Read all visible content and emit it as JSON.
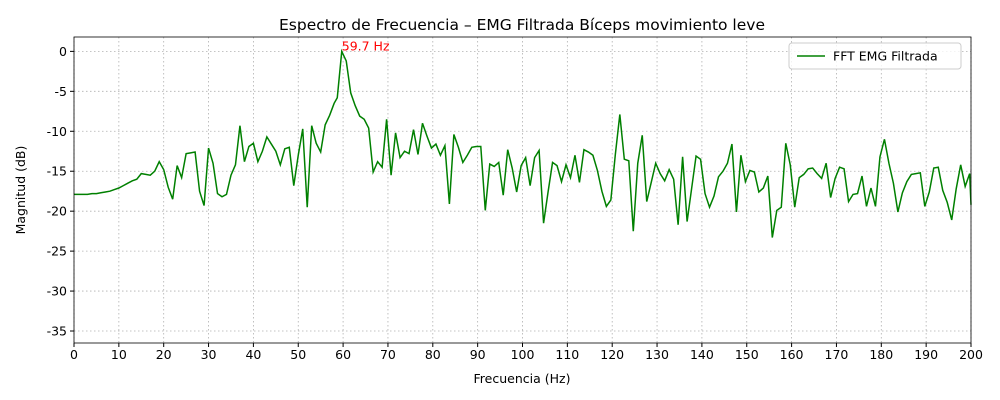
{
  "chart_data": {
    "type": "line",
    "title": "Espectro de Frecuencia – EMG Filtrada Bíceps movimiento leve",
    "xlabel": "Frecuencia (Hz)",
    "ylabel": "Magnitud (dB)",
    "x": [
      0,
      1,
      2,
      3,
      4,
      5,
      6,
      7,
      8,
      9,
      10,
      11,
      12,
      13,
      14,
      15,
      16,
      17,
      18,
      19,
      20,
      21,
      22,
      23,
      24,
      25,
      26,
      27,
      28,
      29,
      30,
      31,
      32,
      33,
      34,
      35,
      36,
      37,
      38,
      39,
      40,
      41,
      42,
      43,
      44,
      45,
      46,
      47,
      48,
      49,
      50,
      51,
      52,
      53,
      54,
      55,
      56,
      57,
      58,
      58.7,
      59.7,
      60.7,
      61.7,
      62.7,
      63.7,
      64.7,
      65.7,
      66.7,
      67.7,
      68.7,
      69.7,
      70.7,
      71.7,
      72.7,
      73.7,
      74.7,
      75.7,
      76.7,
      77.7,
      78.7,
      79.7,
      80.7,
      81.7,
      82.7,
      83.7,
      84.7,
      85.7,
      86.7,
      87.7,
      88.7,
      89.7,
      90.7,
      91.7,
      92.7,
      93.7,
      94.7,
      95.7,
      96.7,
      97.7,
      98.7,
      99.7,
      100.7,
      101.7,
      102.7,
      103.7,
      104.7,
      105.7,
      106.7,
      107.7,
      108.7,
      109.7,
      110.7,
      111.7,
      112.7,
      113.7,
      114.7,
      115.7,
      116.7,
      117.7,
      118.7,
      119.7,
      120.7,
      121.7,
      122.7,
      123.7,
      124.7,
      125.7,
      126.7,
      127.7,
      128.7,
      129.7,
      130.7,
      131.7,
      132.7,
      133.7,
      134.7,
      135.7,
      136.7,
      137.7,
      138.7,
      139.7,
      140.7,
      141.7,
      142.7,
      143.7,
      144.7,
      145.7,
      146.7,
      147.7,
      148.7,
      149.7,
      150.7,
      151.7,
      152.7,
      153.7,
      154.7,
      155.7,
      156.7,
      157.7,
      158.7,
      159.7,
      160.7,
      161.7,
      162.7,
      163.7,
      164.7,
      165.7,
      166.7,
      167.7,
      168.7,
      169.7,
      170.7,
      171.7,
      172.7,
      173.7,
      174.7,
      175.7,
      176.7,
      177.7,
      178.7,
      179.7,
      180.7,
      181.7,
      182.7,
      183.7,
      184.7,
      185.7,
      186.7,
      187.7,
      188.7,
      189.7,
      190.7,
      191.7,
      192.7,
      193.7,
      194.7,
      195.7,
      196.7,
      197.7,
      198.7,
      199.7,
      200
    ],
    "series": [
      {
        "name": "FFT EMG Filtrada",
        "color": "#008000",
        "values": [
          -17.9,
          -17.9,
          -17.9,
          -17.9,
          -17.8,
          -17.8,
          -17.7,
          -17.6,
          -17.5,
          -17.3,
          -17.1,
          -16.8,
          -16.5,
          -16.2,
          -16.0,
          -15.3,
          -15.4,
          -15.5,
          -15.0,
          -13.8,
          -14.8,
          -17.0,
          -18.5,
          -14.3,
          -15.8,
          -12.8,
          -12.7,
          -12.6,
          -17.5,
          -19.3,
          -12.1,
          -14.0,
          -17.8,
          -18.2,
          -17.9,
          -15.5,
          -14.2,
          -9.3,
          -13.8,
          -11.9,
          -11.5,
          -13.8,
          -12.5,
          -10.7,
          -11.6,
          -12.5,
          -14.2,
          -12.2,
          -12.0,
          -16.8,
          -13.0,
          -9.7,
          -19.5,
          -9.3,
          -11.5,
          -12.6,
          -9.2,
          -8.0,
          -6.5,
          -5.8,
          0,
          -1.2,
          -5.2,
          -6.8,
          -8.1,
          -8.5,
          -9.6,
          -15.1,
          -13.8,
          -14.5,
          -8.5,
          -15.5,
          -10.2,
          -13.3,
          -12.5,
          -12.8,
          -9.8,
          -12.9,
          -9.0,
          -10.6,
          -12.1,
          -11.6,
          -13.0,
          -11.8,
          -19.1,
          -10.4,
          -12.0,
          -13.9,
          -13.0,
          -12.0,
          -11.9,
          -11.9,
          -19.9,
          -14.1,
          -14.4,
          -13.9,
          -18.0,
          -12.3,
          -14.6,
          -17.6,
          -14.3,
          -13.3,
          -16.8,
          -13.3,
          -12.4,
          -21.5,
          -17.6,
          -13.9,
          -14.3,
          -16.3,
          -14.2,
          -15.8,
          -13.0,
          -16.4,
          -12.3,
          -12.6,
          -13.0,
          -14.9,
          -17.5,
          -19.4,
          -18.6,
          -12.9,
          -7.9,
          -13.5,
          -13.7,
          -22.5,
          -14.0,
          -10.5,
          -18.8,
          -16.4,
          -14.0,
          -15.3,
          -16.2,
          -14.8,
          -16.0,
          -21.7,
          -13.2,
          -21.3,
          -17.2,
          -13.1,
          -13.5,
          -17.8,
          -19.5,
          -18.1,
          -15.7,
          -15.0,
          -14.0,
          -11.6,
          -20.1,
          -13.0,
          -16.3,
          -14.9,
          -15.1,
          -17.6,
          -17.1,
          -15.6,
          -23.3,
          -19.9,
          -19.5,
          -11.5,
          -14.2,
          -19.5,
          -15.8,
          -15.4,
          -14.7,
          -14.6,
          -15.3,
          -15.9,
          -14.0,
          -18.3,
          -15.9,
          -14.5,
          -14.7,
          -18.8,
          -17.9,
          -17.8,
          -15.6,
          -19.4,
          -17.1,
          -19.4,
          -13.2,
          -11.0,
          -14.0,
          -16.5,
          -20.1,
          -17.7,
          -16.3,
          -15.4,
          -15.3,
          -15.2,
          -19.4,
          -17.6,
          -14.6,
          -14.5,
          -17.4,
          -18.9,
          -21.1,
          -17.2,
          -14.2,
          -16.9,
          -15.3,
          -19.2
        ]
      }
    ],
    "annotations": [
      {
        "text": "59.7 Hz",
        "x": 59.7,
        "y": 0,
        "color": "#ff0000"
      }
    ],
    "xlim": [
      0,
      200
    ],
    "ylim": [
      -36.5,
      1.8
    ],
    "xticks": [
      0,
      10,
      20,
      30,
      40,
      50,
      60,
      70,
      80,
      90,
      100,
      110,
      120,
      130,
      140,
      150,
      160,
      170,
      180,
      190,
      200
    ],
    "yticks": [
      0,
      -5,
      -10,
      -15,
      -20,
      -25,
      -30,
      -35
    ],
    "grid": true,
    "legend": "upper right"
  }
}
